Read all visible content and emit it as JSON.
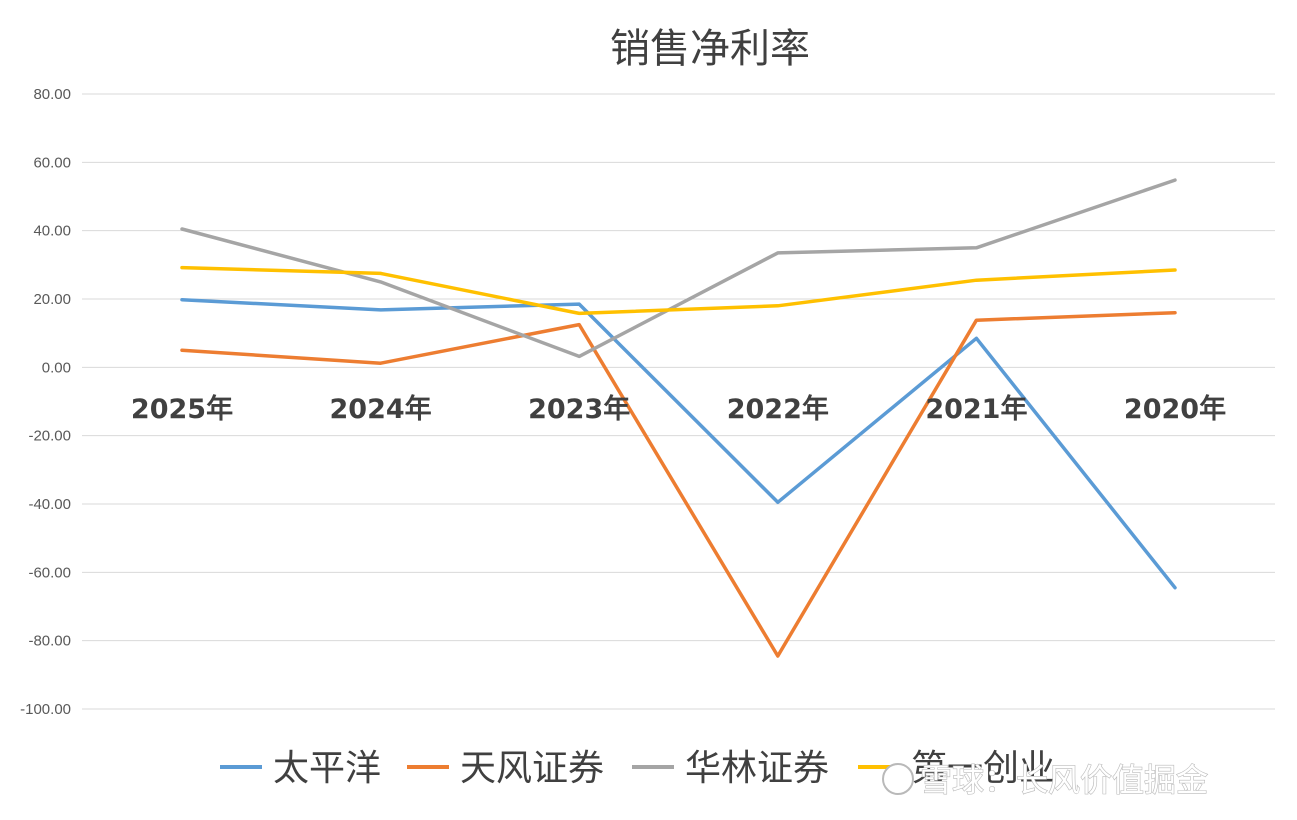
{
  "chart_data": {
    "type": "line",
    "title": "销售净利率",
    "categories": [
      "2025年",
      "2024年",
      "2023年",
      "2022年",
      "2021年",
      "2020年"
    ],
    "ylim": [
      -100,
      80
    ],
    "yticks": [
      80,
      60,
      40,
      20,
      0,
      -20,
      -40,
      -60,
      -80,
      -100
    ],
    "ytick_labels": [
      "80.00",
      "60.00",
      "40.00",
      "20.00",
      "0.00",
      "-20.00",
      "-40.00",
      "-60.00",
      "-80.00",
      "-100.00"
    ],
    "grid": true,
    "legend_position": "bottom",
    "series": [
      {
        "name": "太平洋",
        "color": "#5B9BD5",
        "values": [
          19.8,
          16.8,
          18.5,
          -39.5,
          8.5,
          -64.5
        ]
      },
      {
        "name": "天风证券",
        "color": "#ED7D31",
        "values": [
          5.0,
          1.2,
          12.5,
          -84.5,
          13.8,
          16.0
        ]
      },
      {
        "name": "华林证券",
        "color": "#A5A5A5",
        "values": [
          40.5,
          25.0,
          3.2,
          33.5,
          35.0,
          54.8
        ]
      },
      {
        "name": "第一创业",
        "color": "#FFC000",
        "values": [
          29.2,
          27.5,
          15.8,
          18.0,
          25.5,
          28.5
        ]
      }
    ]
  },
  "watermark": {
    "text": "雪球：长风价值掘金"
  }
}
